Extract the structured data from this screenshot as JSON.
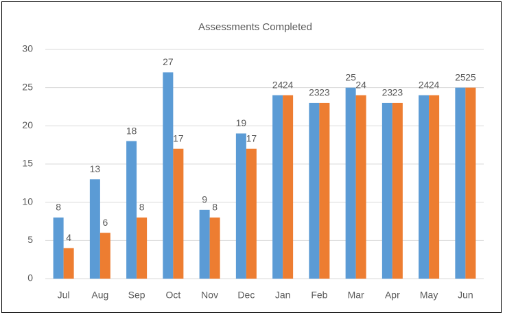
{
  "chart_data": {
    "type": "bar",
    "title": "Assessments Completed",
    "categories": [
      "Jul",
      "Aug",
      "Sep",
      "Oct",
      "Nov",
      "Dec",
      "Jan",
      "Feb",
      "Mar",
      "Apr",
      "May",
      "Jun"
    ],
    "series": [
      {
        "color": "#5b9bd5",
        "values": [
          8,
          13,
          18,
          27,
          9,
          19,
          24,
          23,
          25,
          23,
          24,
          25
        ]
      },
      {
        "color": "#ed7d31",
        "values": [
          4,
          6,
          8,
          17,
          8,
          17,
          24,
          23,
          24,
          23,
          24,
          25
        ]
      }
    ],
    "ylim": [
      0,
      30
    ],
    "yticks": [
      0,
      5,
      10,
      15,
      20,
      25,
      30
    ],
    "grid": true
  }
}
